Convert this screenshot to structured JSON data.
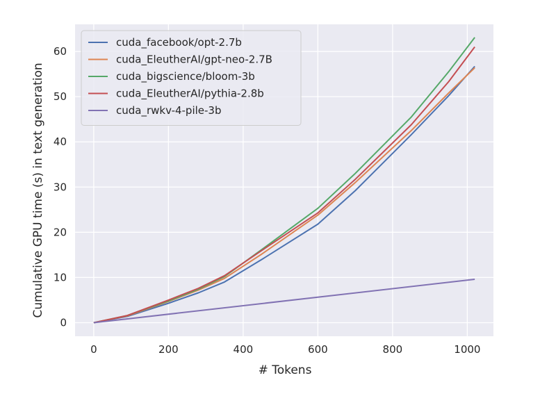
{
  "chart_data": {
    "type": "line",
    "title": "",
    "xlabel": "# Tokens",
    "ylabel": "Cumulative GPU time (s) in text generation",
    "xlim": [
      -50,
      1070
    ],
    "ylim": [
      -3,
      66
    ],
    "xticks": [
      0,
      200,
      400,
      600,
      800,
      1000
    ],
    "yticks": [
      0,
      10,
      20,
      30,
      40,
      50,
      60
    ],
    "grid": true,
    "legend_position": "top-left",
    "series": [
      {
        "name": "cuda_facebook/opt-2.7b",
        "color": "#4c72b0",
        "x": [
          0,
          90,
          200,
          280,
          350,
          450,
          600,
          700,
          850,
          950,
          1020
        ],
        "y": [
          0,
          1.4,
          4.3,
          6.6,
          9.0,
          14.0,
          21.8,
          29.2,
          41.6,
          50.2,
          56.7
        ]
      },
      {
        "name": "cuda_EleutherAI/gpt-neo-2.7B",
        "color": "#dd8452",
        "x": [
          0,
          90,
          200,
          280,
          350,
          450,
          600,
          700,
          850,
          950,
          1020
        ],
        "y": [
          0,
          1.5,
          4.7,
          7.2,
          9.8,
          15.2,
          23.8,
          31.0,
          42.5,
          50.8,
          56.4
        ]
      },
      {
        "name": "cuda_bigscience/bloom-3b",
        "color": "#55a868",
        "x": [
          0,
          90,
          200,
          280,
          350,
          450,
          600,
          700,
          850,
          950,
          1020
        ],
        "y": [
          0,
          1.6,
          4.8,
          7.4,
          10.2,
          16.2,
          25.3,
          33.0,
          45.5,
          55.5,
          63.1
        ]
      },
      {
        "name": "cuda_EleutherAI/pythia-2.8b",
        "color": "#c44e52",
        "x": [
          0,
          90,
          200,
          280,
          350,
          450,
          600,
          700,
          850,
          950,
          1020
        ],
        "y": [
          0,
          1.6,
          5.0,
          7.6,
          10.4,
          16.0,
          24.3,
          31.7,
          43.8,
          53.3,
          61.0
        ]
      },
      {
        "name": "cuda_rwkv-4-pile-3b",
        "color": "#8172b3",
        "x": [
          0,
          1020
        ],
        "y": [
          0,
          9.6
        ]
      }
    ]
  }
}
